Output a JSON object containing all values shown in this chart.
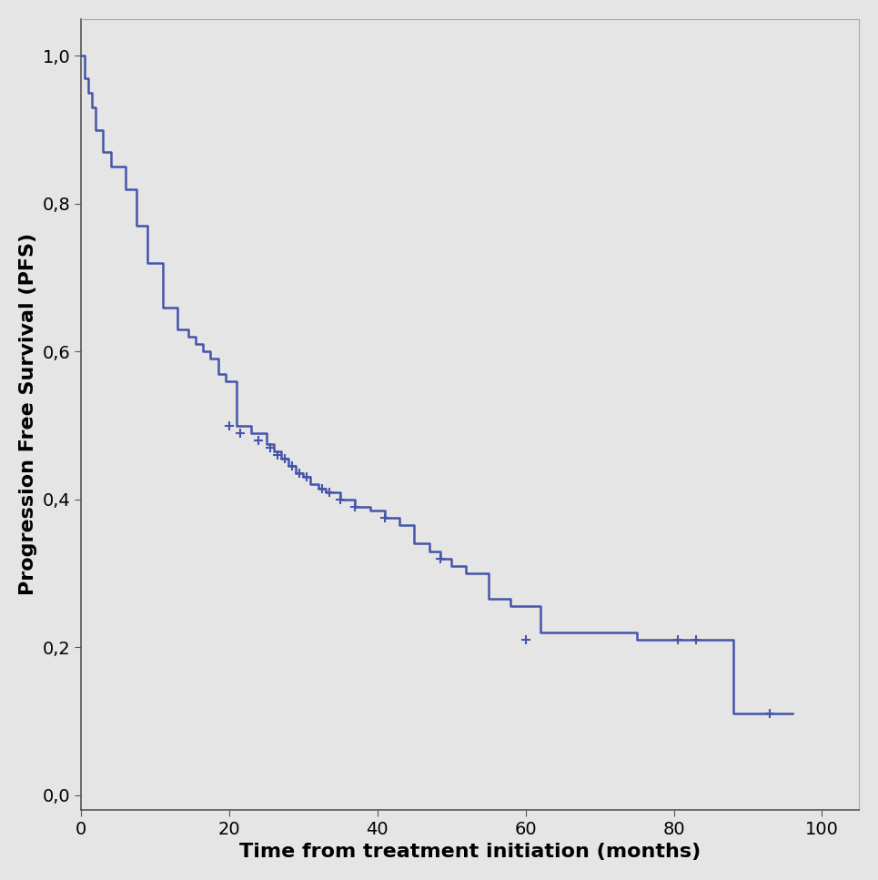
{
  "title": "",
  "xlabel": "Time from treatment initiation (months)",
  "ylabel": "Progression Free Survival (PFS)",
  "xlim": [
    0,
    105
  ],
  "ylim": [
    -0.02,
    1.05
  ],
  "xticks": [
    0,
    20,
    40,
    60,
    80,
    100
  ],
  "yticks": [
    0.0,
    0.2,
    0.4,
    0.6,
    0.8,
    1.0
  ],
  "ytick_labels": [
    "0,0",
    "0,2",
    "0,4",
    "0,6",
    "0,8",
    "1,0"
  ],
  "xtick_labels": [
    "0",
    "20",
    "40",
    "60",
    "80",
    "100"
  ],
  "background_color": "#e5e5e5",
  "line_color": "#4455aa",
  "line_width": 1.8,
  "curve_times": [
    0,
    0.5,
    1.0,
    1.5,
    2.0,
    3.0,
    4.0,
    5.0,
    6.0,
    7.5,
    9.0,
    11.0,
    13.0,
    14.5,
    15.5,
    16.5,
    17.5,
    18.5,
    19.5,
    21.0,
    23.0,
    25.0,
    26.0,
    27.0,
    28.0,
    29.0,
    30.0,
    31.0,
    32.0,
    33.0,
    35.0,
    37.0,
    39.0,
    41.0,
    43.0,
    45.0,
    47.0,
    48.5,
    50.0,
    52.0,
    55.0,
    58.0,
    62.0,
    75.0,
    80.0,
    84.0,
    88.0,
    92.0,
    96.0
  ],
  "curve_probs": [
    1.0,
    0.97,
    0.95,
    0.93,
    0.9,
    0.87,
    0.85,
    0.85,
    0.82,
    0.77,
    0.72,
    0.66,
    0.63,
    0.62,
    0.61,
    0.6,
    0.59,
    0.57,
    0.56,
    0.5,
    0.49,
    0.475,
    0.465,
    0.455,
    0.445,
    0.435,
    0.43,
    0.42,
    0.415,
    0.41,
    0.4,
    0.39,
    0.385,
    0.375,
    0.365,
    0.34,
    0.33,
    0.32,
    0.31,
    0.3,
    0.265,
    0.255,
    0.22,
    0.21,
    0.21,
    0.21,
    0.11,
    0.11,
    0.11
  ],
  "censor_times": [
    20.0,
    21.5,
    24.0,
    25.5,
    26.5,
    27.5,
    28.5,
    29.5,
    30.5,
    32.5,
    33.5,
    35.0,
    37.0,
    41.0,
    48.5,
    60.0,
    80.5,
    83.0,
    93.0
  ],
  "censor_probs": [
    0.5,
    0.49,
    0.48,
    0.47,
    0.46,
    0.455,
    0.445,
    0.435,
    0.43,
    0.415,
    0.41,
    0.4,
    0.39,
    0.375,
    0.32,
    0.21,
    0.21,
    0.21,
    0.11
  ],
  "tick_fontsize": 14,
  "label_fontsize": 16
}
